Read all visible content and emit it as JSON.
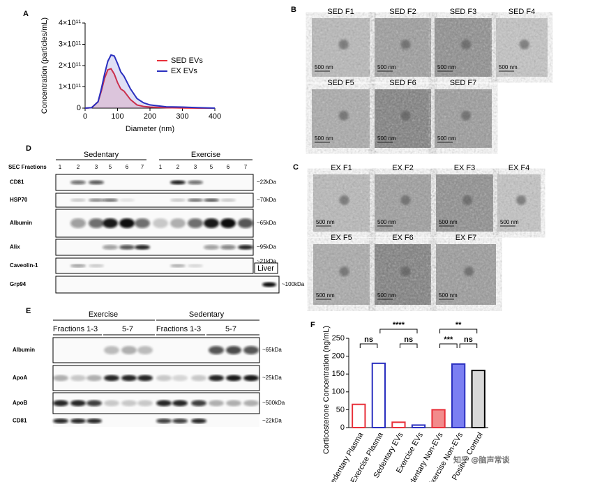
{
  "panel_labels": [
    "A",
    "B",
    "C",
    "D",
    "E",
    "F"
  ],
  "chart_data": [
    {
      "type": "line",
      "xlabel": "Diameter (nm)",
      "ylabel": "Concentration (particles/mL)",
      "x": [
        0,
        20,
        40,
        50,
        60,
        70,
        80,
        90,
        100,
        110,
        120,
        140,
        160,
        180,
        200,
        250,
        300,
        350,
        400
      ],
      "series": [
        {
          "name": "SED EVs",
          "color": "#e8303a",
          "values": [
            0,
            2000000000.0,
            30000000000.0,
            80000000000.0,
            140000000000.0,
            180000000000.0,
            185000000000.0,
            160000000000.0,
            120000000000.0,
            90000000000.0,
            80000000000.0,
            40000000000.0,
            15000000000.0,
            8000000000.0,
            5000000000.0,
            2000000000.0,
            1000000000.0,
            0,
            0
          ]
        },
        {
          "name": "EX EVs",
          "color": "#2a2fbf",
          "values": [
            0,
            2000000000.0,
            30000000000.0,
            90000000000.0,
            160000000000.0,
            220000000000.0,
            250000000000.0,
            245000000000.0,
            210000000000.0,
            170000000000.0,
            150000000000.0,
            90000000000.0,
            45000000000.0,
            25000000000.0,
            15000000000.0,
            6000000000.0,
            5000000000.0,
            2000000000.0,
            0
          ]
        }
      ],
      "xlim": [
        0,
        400
      ],
      "xticks": [
        0,
        100,
        200,
        300,
        400
      ],
      "ylim": [
        0,
        400000000000.0
      ],
      "yticks": [
        0,
        {
          "value": 100000000000.0,
          "label": "1×10¹¹"
        },
        {
          "value": 200000000000.0,
          "label": "2×10¹¹"
        },
        {
          "value": 300000000000.0,
          "label": "3×10¹¹"
        },
        {
          "value": 400000000000.0,
          "label": "4×10¹¹"
        }
      ],
      "legend": "right"
    },
    {
      "type": "bar",
      "ylabel": "Corticosterone Concentration (ng/mL)",
      "categories": [
        "Sedentary Plasma",
        "Exercise Plasma",
        "Sedentary EVs",
        "Exercise EVs",
        "Sedentary Non-EVs",
        "Exercise Non-EVs",
        "Positive Control"
      ],
      "values": [
        65,
        180,
        15,
        7,
        50,
        178,
        160
      ],
      "colors": [
        "#ffffff",
        "#ffffff",
        "#ffffff",
        "#ffffff",
        "#f28b8b",
        "#7b7ff2",
        "#d9d9d9"
      ],
      "edge_colors": [
        "#e8303a",
        "#2a2fbf",
        "#e8303a",
        "#2a2fbf",
        "#e8303a",
        "#2a2fbf",
        "#000000"
      ],
      "ylim": [
        0,
        250
      ],
      "yticks": [
        0,
        50,
        100,
        150,
        200,
        250
      ],
      "significance": [
        "ns",
        "****",
        "ns",
        "***",
        "ns",
        "**"
      ]
    }
  ],
  "panel_b": {
    "labels": [
      "SED F1",
      "SED F2",
      "SED F3",
      "SED F4",
      "SED F5",
      "SED F6",
      "SED F7"
    ],
    "scale_bar": "500 nm"
  },
  "panel_c": {
    "labels": [
      "EX F1",
      "EX F2",
      "EX F3",
      "EX F4",
      "EX F5",
      "EX F6",
      "EX F7"
    ],
    "scale_bar": "500 nm"
  },
  "blot_d": {
    "groups": [
      "Sedentary",
      "Exercise"
    ],
    "fractions_label": "SEC Fractions",
    "lanes": [
      "1",
      "2",
      "3",
      "5",
      "6",
      "7"
    ],
    "rows": [
      {
        "name": "CD81",
        "size": "~22kDa"
      },
      {
        "name": "HSP70",
        "size": "~70kDa"
      },
      {
        "name": "Albumin",
        "size": "~65kDa"
      },
      {
        "name": "Alix",
        "size": "~95kDa"
      },
      {
        "name": "Caveolin-1",
        "size": "~21kDa"
      },
      {
        "name": "Grp94",
        "size": "~100kDa"
      }
    ],
    "liver": "Liver"
  },
  "blot_e": {
    "groups": [
      "Exercise",
      "Sedentary"
    ],
    "subgroups": [
      "Fractions 1-3",
      "5-7"
    ],
    "rows": [
      {
        "name": "Albumin",
        "size": "~65kDa"
      },
      {
        "name": "ApoA",
        "size": "~25kDa"
      },
      {
        "name": "ApoB",
        "size": "~500kDa"
      },
      {
        "name": "CD81",
        "size": "~22kDa"
      }
    ]
  },
  "watermark": "知乎 @脑声常谈"
}
